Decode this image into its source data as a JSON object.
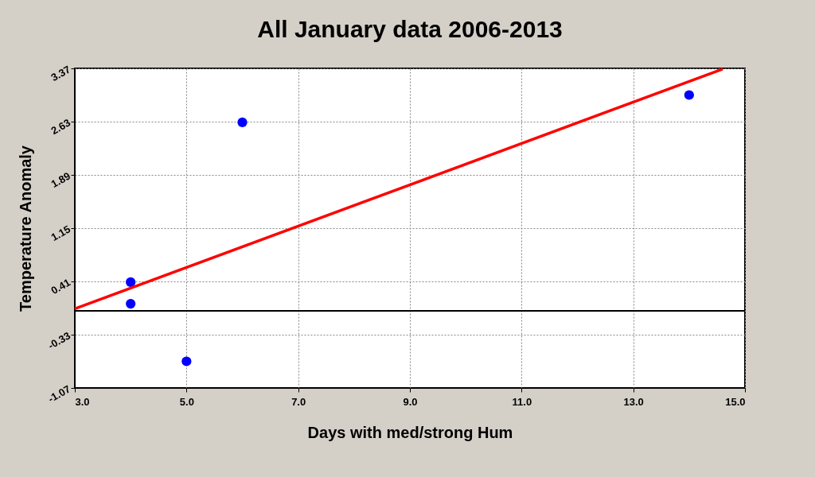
{
  "chart_data": {
    "type": "scatter",
    "title": "All January data 2006-2013",
    "xlabel": "Days with med/strong Hum",
    "ylabel": "Temperature Anomaly",
    "xlim": [
      3,
      15
    ],
    "ylim": [
      -1.07,
      3.37
    ],
    "xticks": [
      {
        "value": 3,
        "label": "3.0"
      },
      {
        "value": 5,
        "label": "5.0"
      },
      {
        "value": 7,
        "label": "7.0"
      },
      {
        "value": 9,
        "label": "9.0"
      },
      {
        "value": 11,
        "label": "11.0"
      },
      {
        "value": 13,
        "label": "13.0"
      },
      {
        "value": 15,
        "label": "15.0"
      }
    ],
    "yticks": [
      -1.07,
      -0.33,
      0.41,
      1.15,
      1.89,
      2.63,
      3.37
    ],
    "grid": true,
    "marker": "circle",
    "ref_lines": [
      {
        "axis": "y",
        "value": 0,
        "color": "#000000"
      }
    ],
    "series": [
      {
        "color": "#0000ff",
        "x": [
          4,
          4,
          5,
          6,
          14
        ],
        "values": [
          0.4,
          0.1,
          -0.7,
          2.62,
          3.0
        ]
      },
      {
        "type": "line",
        "color": "#ff0000",
        "x": [
          3,
          14.6
        ],
        "values": [
          0.03,
          3.36
        ],
        "marker": "none",
        "line_style": "solid"
      }
    ]
  }
}
